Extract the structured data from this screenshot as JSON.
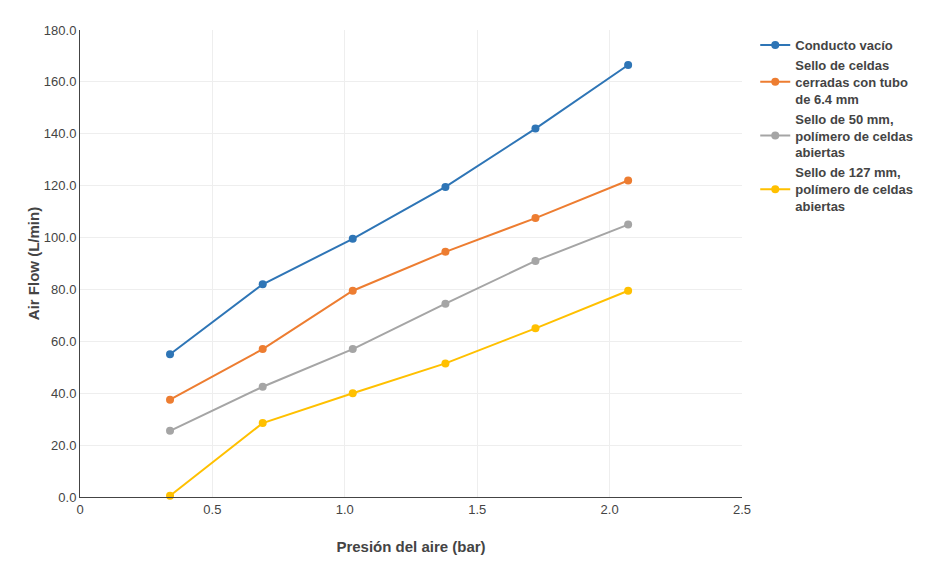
{
  "chart_data": {
    "type": "line",
    "x": [
      0.34,
      0.69,
      1.03,
      1.38,
      1.72,
      2.07
    ],
    "series": [
      {
        "name": "Conducto vacío",
        "color": "#2E75B6",
        "values": [
          55.0,
          82.0,
          99.5,
          119.5,
          142.0,
          166.5
        ]
      },
      {
        "name": "Sello de celdas\ncerradas con tubo\nde 6.4 mm",
        "color": "#ED7D31",
        "values": [
          37.5,
          57.0,
          79.5,
          94.5,
          107.5,
          122.0
        ]
      },
      {
        "name": "Sello de 50 mm,\npolímero de celdas\nabiertas",
        "color": "#A5A5A5",
        "values": [
          25.5,
          42.5,
          57.0,
          74.5,
          91.0,
          105.0
        ]
      },
      {
        "name": "Sello de 127 mm,\npolímero de celdas\nabiertas",
        "color": "#FFC000",
        "values": [
          0.5,
          28.5,
          40.0,
          51.5,
          65.0,
          79.5
        ]
      }
    ],
    "xlabel": "Presión del aire (bar)",
    "ylabel": "Air Flow (L/min)",
    "xlim": [
      0,
      2.5
    ],
    "ylim": [
      0,
      180
    ],
    "xticks": [
      0,
      0.5,
      {
        "value": 1.0,
        "label": "1.0"
      },
      1.5,
      {
        "value": 2.0,
        "label": "2.0"
      },
      2.5
    ],
    "yticks": [
      {
        "value": 0,
        "label": "0.0"
      },
      {
        "value": 20,
        "label": "20.0"
      },
      {
        "value": 40,
        "label": "40.0"
      },
      {
        "value": 60,
        "label": "60.0"
      },
      {
        "value": 80,
        "label": "80.0"
      },
      {
        "value": 100,
        "label": "100.0"
      },
      {
        "value": 120,
        "label": "120.0"
      },
      {
        "value": 140,
        "label": "140.0"
      },
      {
        "value": 160,
        "label": "160.0"
      },
      {
        "value": 180,
        "label": "180.0"
      }
    ],
    "grid": true,
    "marker": "circle",
    "legend": "right"
  }
}
